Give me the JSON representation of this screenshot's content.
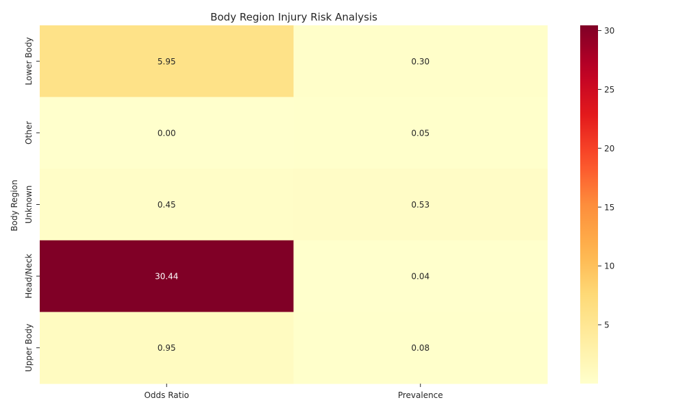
{
  "chart_data": {
    "type": "heatmap",
    "title": "Body Region Injury Risk Analysis",
    "xlabel": "",
    "ylabel": "Body Region",
    "columns": [
      "Odds Ratio",
      "Prevalence"
    ],
    "rows": [
      "Lower Body",
      "Other",
      "Unknown",
      "Head/Neck",
      "Upper Body"
    ],
    "values": [
      [
        5.95,
        0.3
      ],
      [
        0.0,
        0.05
      ],
      [
        0.45,
        0.53
      ],
      [
        30.44,
        0.04
      ],
      [
        0.95,
        0.08
      ]
    ],
    "value_labels": [
      [
        "5.95",
        "0.30"
      ],
      [
        "0.00",
        "0.05"
      ],
      [
        "0.45",
        "0.53"
      ],
      [
        "30.44",
        "0.04"
      ],
      [
        "0.95",
        "0.08"
      ]
    ],
    "colormap": "YlOrRd",
    "color_range": [
      0.0,
      30.44
    ],
    "colorbar_ticks": [
      5,
      10,
      15,
      20,
      25,
      30
    ],
    "grid": false
  }
}
